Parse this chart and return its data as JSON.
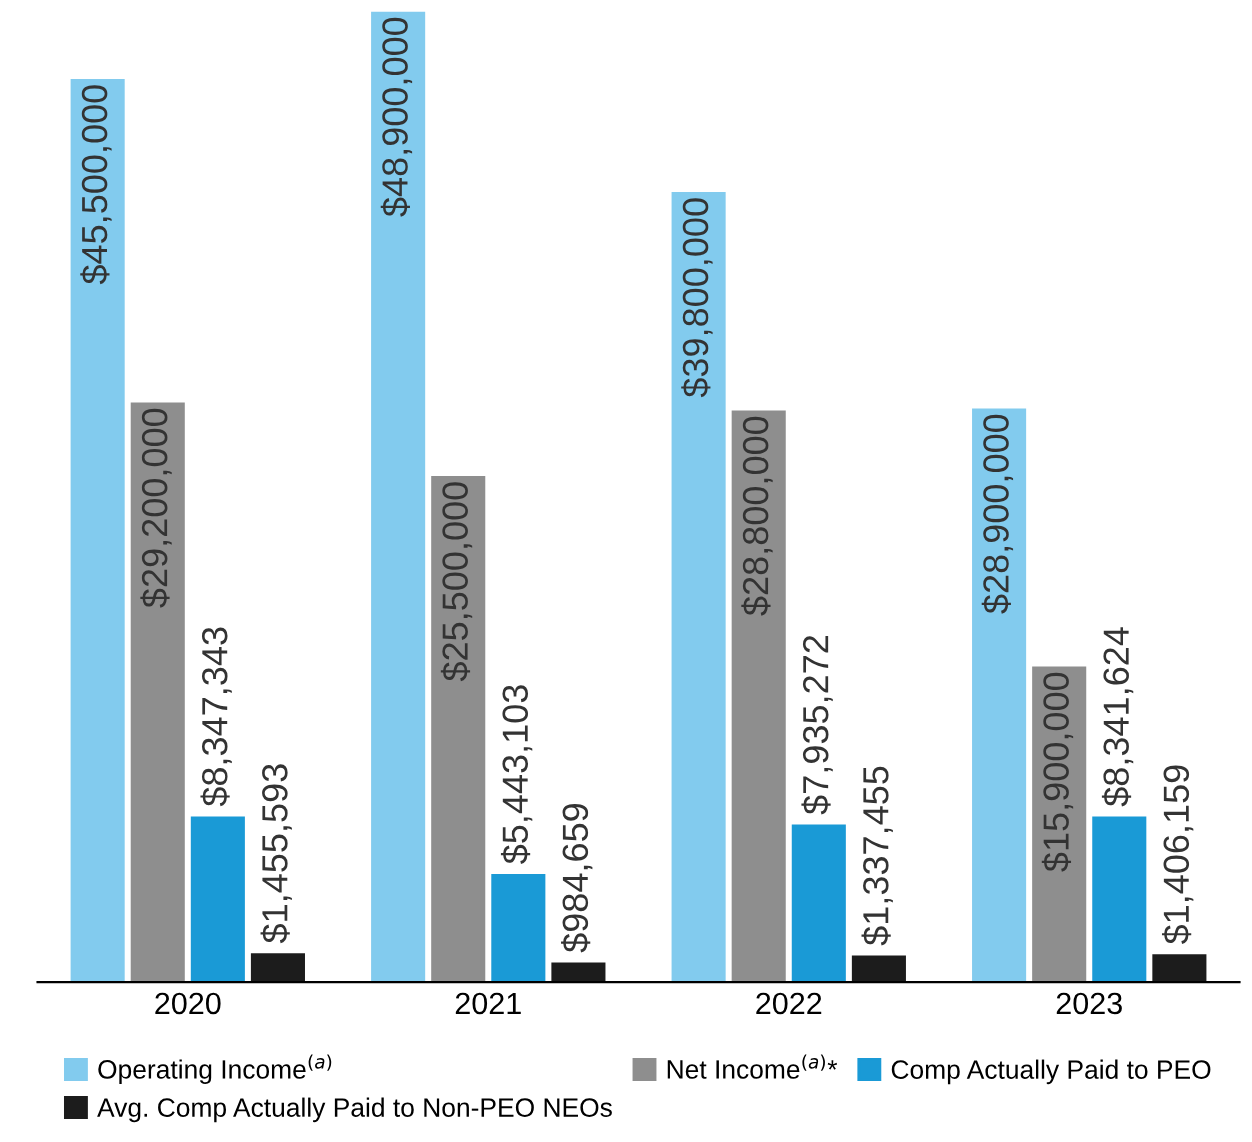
{
  "chart_data": {
    "type": "bar",
    "categories": [
      "2020",
      "2021",
      "2022",
      "2023"
    ],
    "series": [
      {
        "name": "Operating Income$^{(a)}$",
        "color": "#82cbee",
        "values": [
          45500000,
          48900000,
          39800000,
          28900000
        ],
        "value_labels": [
          "$45,500,000",
          "$48,900,000",
          "$39,800,000",
          "$28,900,000"
        ]
      },
      {
        "name": "Net Income$^{(a)}$*",
        "color": "#8e8e8e",
        "values": [
          29200000,
          25500000,
          28800000,
          15900000
        ],
        "value_labels": [
          "$29,200,000",
          "$25,500,000",
          "$28,800,000",
          "$15,900,000"
        ]
      },
      {
        "name": "Comp Actually Paid to PEO",
        "color": "#1a9ad6",
        "values": [
          8347343,
          5443103,
          7935272,
          8341624
        ],
        "value_labels": [
          "$8,347,343",
          "$5,443,103",
          "$7,935,272",
          "$8,341,624"
        ]
      },
      {
        "name": "Avg. Comp Actually Paid to Non-PEO NEOs",
        "color": "#1c1c1c",
        "values": [
          1455593,
          984659,
          1337455,
          1406159
        ],
        "value_labels": [
          "$1,455,593",
          "$984,659",
          "$1,337,455",
          "$1,406,159"
        ]
      }
    ],
    "legend": "bottom",
    "grid": false
  }
}
